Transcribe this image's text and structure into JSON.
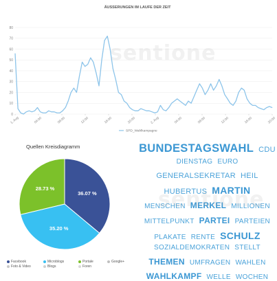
{
  "chart_data": [
    {
      "type": "line",
      "title": "ÄUSSERUNGEN IM LAUFE DER ZEIT",
      "ylabel": "",
      "xlabel": "",
      "ylim": [
        0,
        80
      ],
      "yticks": [
        0,
        10,
        20,
        30,
        40,
        50,
        60,
        70,
        80
      ],
      "grid": true,
      "legend_position": "bottom-center",
      "x_tick_labels": [
        "1. Aug",
        "04:00",
        "08:00",
        "12:00",
        "16:00",
        "20:00",
        "2. Aug",
        "04:00",
        "08:00",
        "12:00",
        "16:00",
        "20:00"
      ],
      "x": [
        0,
        0.5,
        1,
        1.5,
        2,
        2.5,
        3,
        3.5,
        4,
        4.5,
        5,
        5.5,
        6,
        6.5,
        7,
        7.5,
        8,
        8.5,
        9,
        9.5,
        10,
        10.5,
        11,
        11.5,
        12,
        12.5,
        13,
        13.5,
        14,
        14.5,
        15,
        15.5,
        16,
        16.5,
        17,
        17.5,
        18,
        18.5,
        19,
        19.5,
        20,
        20.5,
        21,
        21.5,
        22,
        22.5,
        23,
        23.5,
        24,
        24.5,
        25,
        25.5,
        26,
        26.5,
        27,
        27.5,
        28,
        28.5,
        29,
        29.5,
        30,
        30.5,
        31,
        31.5,
        32,
        32.5,
        33,
        33.5,
        34,
        34.5,
        35,
        35.5,
        36,
        36.5,
        37,
        37.5,
        38,
        38.5,
        39,
        39.5,
        40,
        40.5,
        41,
        41.5,
        42,
        42.5,
        43,
        43.5,
        44,
        44.5,
        45,
        45.5,
        46
      ],
      "series": [
        {
          "name": "SPD_Wahlkampagne",
          "color": "#8cc4ea",
          "values": [
            56,
            5,
            1,
            0,
            2,
            3,
            2,
            3,
            6,
            2,
            1,
            1,
            3,
            2,
            2,
            1,
            1,
            3,
            6,
            12,
            20,
            24,
            20,
            35,
            48,
            44,
            46,
            52,
            48,
            38,
            26,
            50,
            68,
            72,
            60,
            42,
            32,
            20,
            18,
            12,
            10,
            6,
            4,
            3,
            3,
            5,
            4,
            3,
            3,
            2,
            1,
            2,
            8,
            4,
            3,
            6,
            10,
            12,
            14,
            12,
            10,
            8,
            12,
            10,
            16,
            22,
            28,
            24,
            18,
            22,
            28,
            22,
            26,
            32,
            26,
            18,
            14,
            10,
            8,
            12,
            20,
            24,
            22,
            14,
            10,
            8,
            8,
            6,
            5,
            4,
            6,
            7,
            6
          ]
        }
      ]
    },
    {
      "type": "pie",
      "title": "Quellen Kreisdiagramm",
      "categories": [
        "Facebook",
        "Foto & Video",
        "Microblogs",
        "Blogs",
        "Portale",
        "Foren",
        "Google+"
      ],
      "values": [
        36.07,
        0,
        35.2,
        0,
        28.73,
        0,
        0
      ],
      "labels": [
        "36.07 %",
        "35.20 %",
        "28.73 %"
      ],
      "colors": [
        "#3a5297",
        "#c8c8c8",
        "#38c0f2",
        "#d0d0d0",
        "#7cc12a",
        "#d8d8d8",
        "#c0c0c0"
      ],
      "legend_position": "bottom"
    }
  ],
  "wordcloud": {
    "rows": [
      [
        {
          "t": "BUNDESTAGSWAHL",
          "s": "xl"
        },
        {
          "t": "CDU",
          "s": "m"
        }
      ],
      [
        {
          "t": "DIENSTAG",
          "s": "s"
        },
        {
          "t": "EURO",
          "s": "s"
        }
      ],
      [
        {
          "t": "GENERALSEKRETAR",
          "s": "m"
        },
        {
          "t": "HEIL",
          "s": "m"
        }
      ],
      [
        {
          "t": "HUBERTUS",
          "s": "m"
        },
        {
          "t": "MARTIN",
          "s": "l"
        }
      ],
      [
        {
          "t": "MENSCHEN",
          "s": "s"
        },
        {
          "t": "MERKEL",
          "s": "mb"
        },
        {
          "t": "MILLIONEN",
          "s": "s"
        }
      ],
      [
        {
          "t": "MITTELPUNKT",
          "s": "s"
        },
        {
          "t": "PARTEI",
          "s": "mb"
        },
        {
          "t": "PARTEIEN",
          "s": "s"
        }
      ],
      [
        {
          "t": "PLAKATE",
          "s": "s"
        },
        {
          "t": "RENTE",
          "s": "s"
        },
        {
          "t": "SCHULZ",
          "s": "l"
        }
      ],
      [
        {
          "t": "SOZIALDEMOKRATEN",
          "s": "s"
        },
        {
          "t": "STELLT",
          "s": "s"
        }
      ],
      [
        {
          "t": "THEMEN",
          "s": "mb"
        },
        {
          "t": "UMFRAGEN",
          "s": "s"
        },
        {
          "t": "WAHLEN",
          "s": "s"
        }
      ],
      [
        {
          "t": "WAHLKAMPF",
          "s": "mb"
        },
        {
          "t": "WELLE",
          "s": "s"
        },
        {
          "t": "WOCHEN",
          "s": "s"
        }
      ]
    ]
  },
  "watermark": "sentione"
}
